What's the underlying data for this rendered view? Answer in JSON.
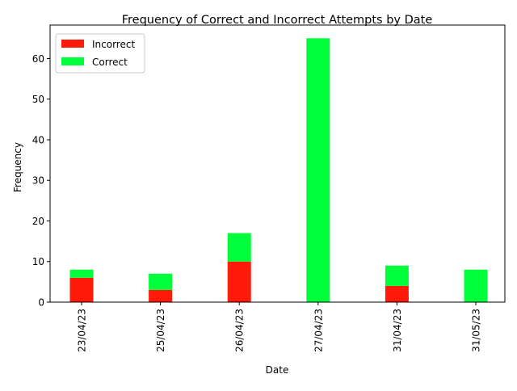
{
  "chart_data": {
    "type": "bar",
    "stacked": true,
    "title": "Frequency of Correct and Incorrect Attempts by Date",
    "xlabel": "Date",
    "ylabel": "Frequency",
    "categories": [
      "23/04/23",
      "25/04/23",
      "26/04/23",
      "27/04/23",
      "31/04/23",
      "31/05/23"
    ],
    "series": [
      {
        "name": "Incorrect",
        "color": "#ff1a0a",
        "values": [
          6,
          3,
          10,
          0,
          4,
          0
        ]
      },
      {
        "name": "Correct",
        "color": "#00ff3a",
        "values": [
          2,
          4,
          7,
          65,
          5,
          8
        ]
      }
    ],
    "ylim": [
      0,
      68.25
    ],
    "yticks": [
      0,
      10,
      20,
      30,
      40,
      50,
      60
    ],
    "grid": false,
    "legend_position": "top-left"
  }
}
